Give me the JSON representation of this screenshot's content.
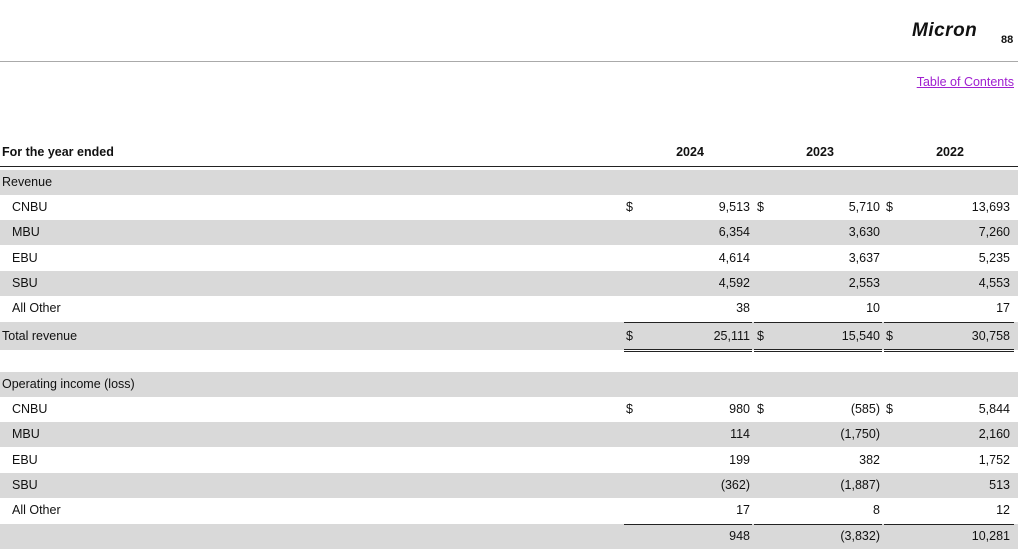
{
  "header": {
    "logo": "Micron",
    "page_number": "88",
    "link": "Table of Contents"
  },
  "table": {
    "caption": "For the year ended",
    "years": [
      "2024",
      "2023",
      "2022"
    ],
    "sections": [
      {
        "title": "Revenue",
        "rows": [
          {
            "label": "CNBU",
            "currency": [
              "$",
              "$",
              "$"
            ],
            "cells": [
              "9,513",
              "5,710",
              "13,693"
            ]
          },
          {
            "label": "MBU",
            "cells": [
              "6,354",
              "3,630",
              "7,260"
            ]
          },
          {
            "label": "EBU",
            "cells": [
              "4,614",
              "3,637",
              "5,235"
            ]
          },
          {
            "label": "SBU",
            "cells": [
              "4,592",
              "2,553",
              "4,553"
            ]
          },
          {
            "label": "All Other",
            "cells": [
              "38",
              "10",
              "17"
            ]
          }
        ],
        "total": {
          "label": "Total revenue",
          "currency": [
            "$",
            "$",
            "$"
          ],
          "cells": [
            "25,111",
            "15,540",
            "30,758"
          ]
        }
      },
      {
        "title": "Operating income (loss)",
        "rows": [
          {
            "label": "CNBU",
            "currency": [
              "$",
              "$",
              "$"
            ],
            "cells": [
              "980",
              "(585)",
              "5,844"
            ]
          },
          {
            "label": "MBU",
            "cells": [
              "114",
              "(1,750)",
              "2,160"
            ]
          },
          {
            "label": "EBU",
            "cells": [
              "199",
              "382",
              "1,752"
            ]
          },
          {
            "label": "SBU",
            "cells": [
              "(362)",
              "(1,887)",
              "513"
            ]
          },
          {
            "label": "All Other",
            "cells": [
              "17",
              "8",
              "12"
            ]
          }
        ],
        "total": {
          "cells": [
            "948",
            "(3,832)",
            "10,281"
          ]
        }
      }
    ]
  }
}
